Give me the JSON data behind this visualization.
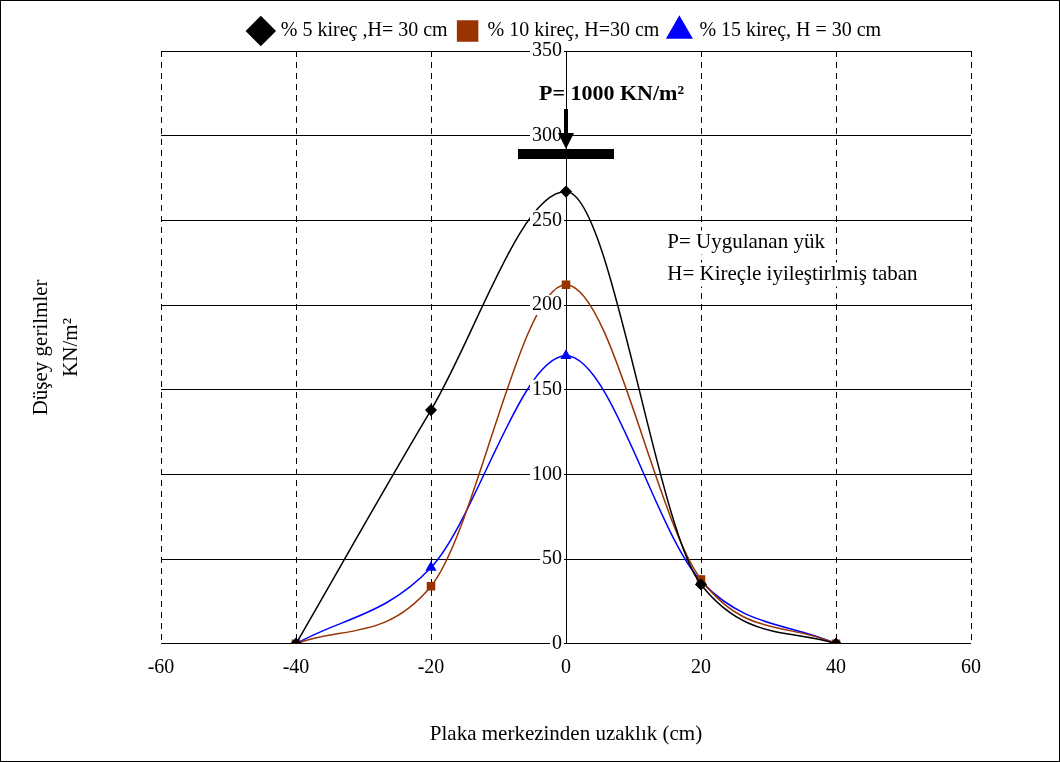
{
  "chart_data": {
    "type": "line",
    "xlabel": "Plaka merkezinden uzaklık (cm)",
    "ylabel": "Düşey gerilmler\nKN/m²",
    "x": [
      -40,
      -20,
      0,
      20,
      40
    ],
    "series": [
      {
        "name": "% 5 kireç ,H= 30 cm",
        "color": "#000000",
        "marker": "diamond",
        "values": [
          0,
          138,
          267,
          35,
          0
        ]
      },
      {
        "name": "% 10 kireç, H=30 cm",
        "color": "#993300",
        "marker": "square",
        "values": [
          0,
          34,
          212,
          38,
          0
        ]
      },
      {
        "name": "% 15 kireç, H = 30 cm",
        "color": "#0000ff",
        "marker": "triangle",
        "values": [
          0,
          45,
          170,
          37,
          0
        ]
      }
    ],
    "xlim": [
      -60,
      60
    ],
    "xticks": [
      -60,
      -40,
      -20,
      0,
      20,
      40,
      60
    ],
    "ylim": [
      0,
      350
    ],
    "yticks": [
      0,
      50,
      100,
      150,
      200,
      250,
      300,
      350
    ],
    "grid": true,
    "legend": "top",
    "line_style": "solid",
    "annotations": [
      "P= 1000 KN/m²",
      "P= Uygulanan yük",
      "H= Kireçle iyileştirlmiş taban"
    ]
  }
}
